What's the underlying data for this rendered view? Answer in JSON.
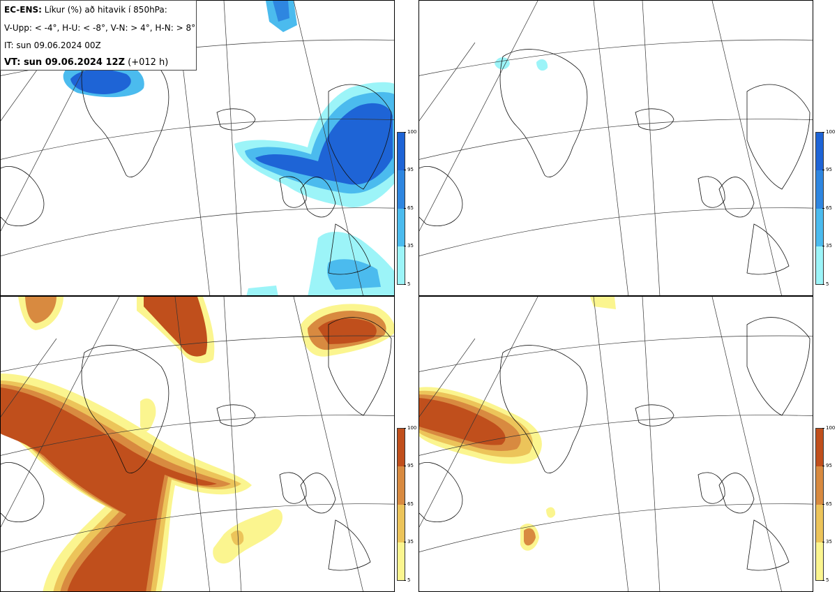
{
  "header": {
    "model": "EC-ENS:",
    "title": "Líkur (%) að hitavik í 850hPa:",
    "criteria": "V-Upp: < -4°, H-U: < -8°, V-N: > 4°, H-N: > 8°",
    "initial_time": "IT: sun 09.06.2024 00Z",
    "valid_time": "VT: sun 09.06.2024 12Z",
    "lead_time": "(+012 h)"
  },
  "panels": [
    {
      "id": "v-upp",
      "field": "probability below -4°",
      "palette": "cold"
    },
    {
      "id": "h-u",
      "field": "probability below -8°",
      "palette": "cold"
    },
    {
      "id": "v-n",
      "field": "probability above 4°",
      "palette": "warm"
    },
    {
      "id": "h-n",
      "field": "probability above 8°",
      "palette": "warm"
    }
  ],
  "colorbar": {
    "ticks": [
      "100",
      "95",
      "65",
      "35",
      "5"
    ],
    "cold_colors": [
      "#1e64d6",
      "#2e86e0",
      "#4bbbee",
      "#9cf4f8"
    ],
    "warm_colors": [
      "#c04f1c",
      "#d88a40",
      "#ecc45a",
      "#fbf58f"
    ]
  }
}
